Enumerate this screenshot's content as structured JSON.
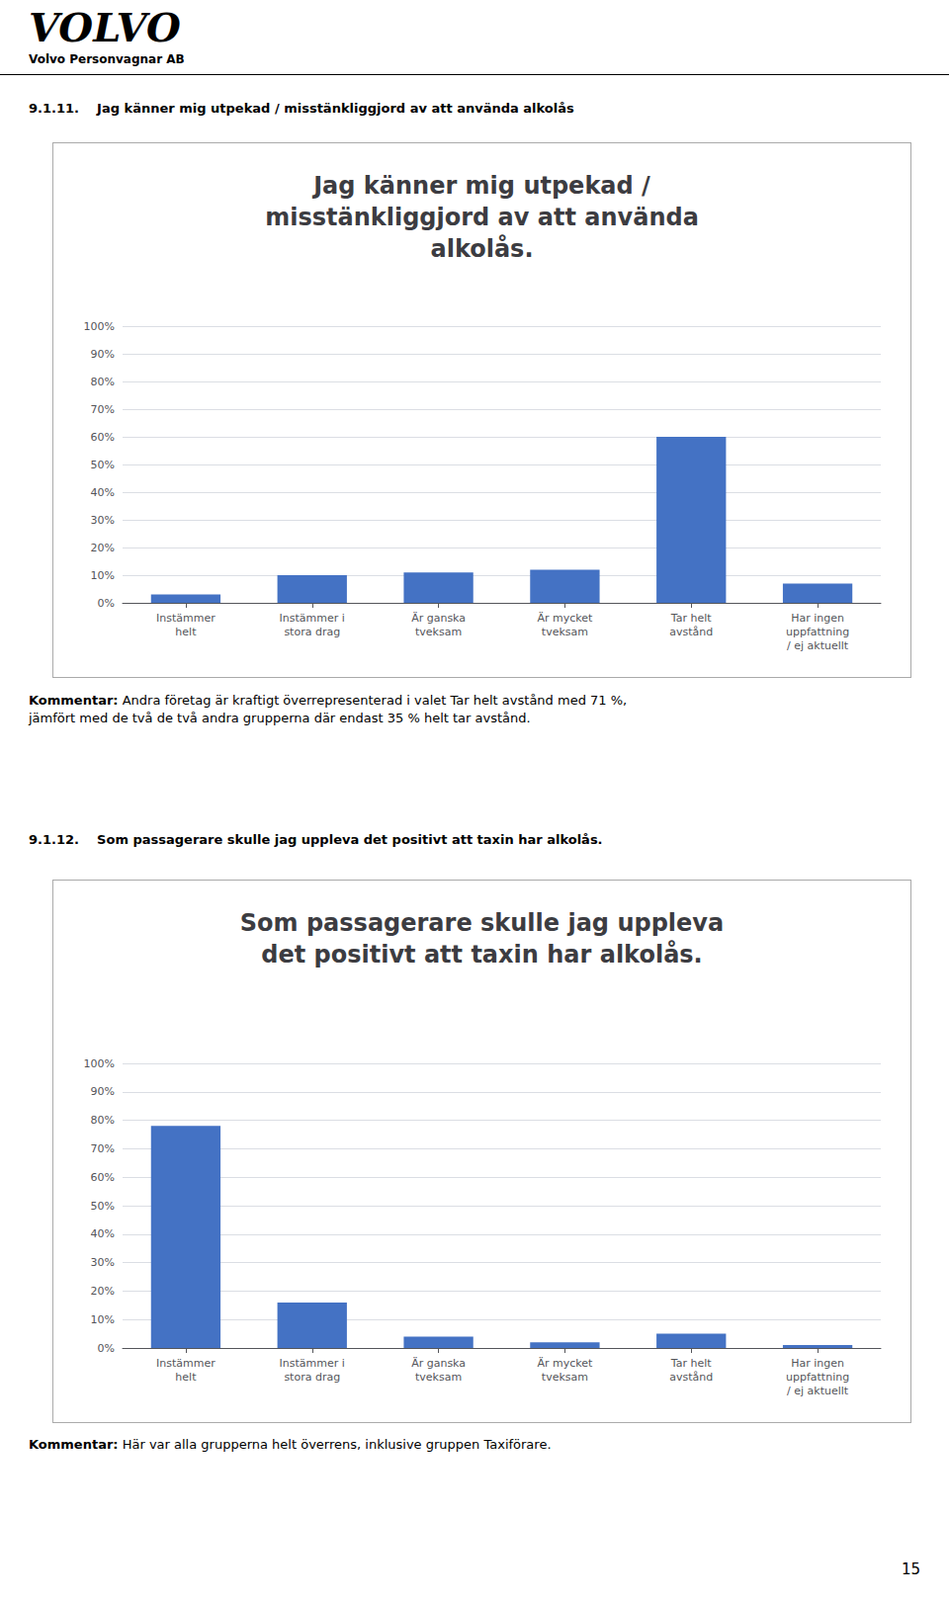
{
  "page": {
    "logo": "VOLVO",
    "subtitle": "Volvo Personvagnar AB",
    "page_number": "15"
  },
  "chart_data": [
    {
      "type": "bar",
      "heading": "9.1.11.    Jag känner mig utpekad / misstänkliggjord av att använda alkolås",
      "title": "Jag känner mig utpekad /\nmisstänkliggjord av att använda\nalkolås.",
      "categories": [
        "Instämmer\nhelt",
        "Instämmer i\nstora drag",
        "Är ganska\ntveksam",
        "Är mycket\ntveksam",
        "Tar helt\navstånd",
        "Har ingen\nuppfattning\n/ ej aktuellt"
      ],
      "values": [
        0.03,
        0.1,
        0.11,
        0.12,
        0.6,
        0.07
      ],
      "color": "#4472C4",
      "ylim": [
        0,
        1.0
      ],
      "yticks": [
        {
          "value": 0.0,
          "label": "0%"
        },
        {
          "value": 0.1,
          "label": "10%"
        },
        {
          "value": 0.2,
          "label": "20%"
        },
        {
          "value": 0.3,
          "label": "30%"
        },
        {
          "value": 0.4,
          "label": "40%"
        },
        {
          "value": 0.5,
          "label": "50%"
        },
        {
          "value": 0.6,
          "label": "60%"
        },
        {
          "value": 0.7,
          "label": "70%"
        },
        {
          "value": 0.8,
          "label": "80%"
        },
        {
          "value": 0.9,
          "label": "90%"
        },
        {
          "value": 1.0,
          "label": "100%"
        }
      ],
      "grid": true,
      "annotations": [
        {
          "label": "Kommentar:",
          "text": " Andra företag är kraftigt överrepresenterad i valet Tar helt avstånd med 71 %,\njämfört med de två de två andra grupperna där endast 35 % helt tar avstånd."
        }
      ]
    },
    {
      "type": "bar",
      "heading": "9.1.12.    Som passagerare skulle jag uppleva det positivt att taxin har alkolås.",
      "title": "Som passagerare skulle jag uppleva\ndet positivt att taxin har alkolås.",
      "categories": [
        "Instämmer\nhelt",
        "Instämmer i\nstora drag",
        "Är ganska\ntveksam",
        "Är mycket\ntveksam",
        "Tar helt\navstånd",
        "Har ingen\nuppfattning\n/ ej aktuellt"
      ],
      "values": [
        0.78,
        0.16,
        0.04,
        0.02,
        0.05,
        0.01
      ],
      "color": "#4472C4",
      "ylim": [
        0,
        1.0
      ],
      "yticks": [
        {
          "value": 0.0,
          "label": "0%"
        },
        {
          "value": 0.1,
          "label": "10%"
        },
        {
          "value": 0.2,
          "label": "20%"
        },
        {
          "value": 0.3,
          "label": "30%"
        },
        {
          "value": 0.4,
          "label": "40%"
        },
        {
          "value": 0.5,
          "label": "50%"
        },
        {
          "value": 0.6,
          "label": "60%"
        },
        {
          "value": 0.7,
          "label": "70%"
        },
        {
          "value": 0.8,
          "label": "80%"
        },
        {
          "value": 0.9,
          "label": "90%"
        },
        {
          "value": 1.0,
          "label": "100%"
        }
      ],
      "grid": true,
      "annotations": [
        {
          "label": "Kommentar:",
          "text": " Här var alla grupperna helt överrens, inklusive gruppen Taxiförare."
        }
      ]
    }
  ]
}
